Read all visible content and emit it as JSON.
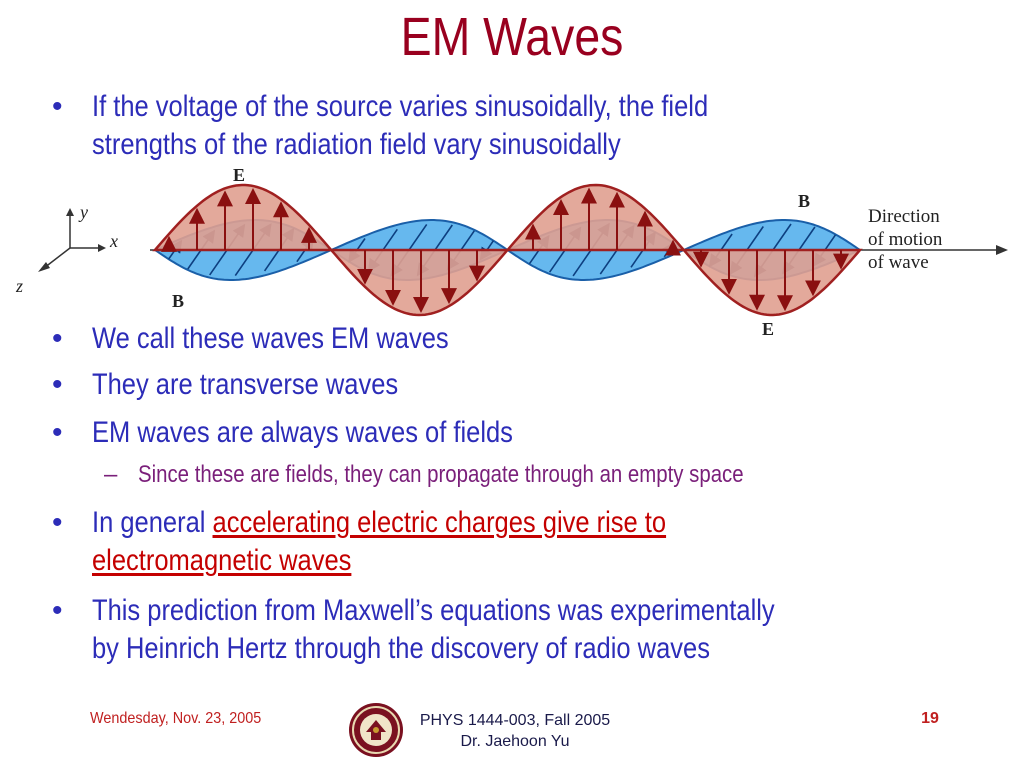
{
  "title": "EM Waves",
  "bullets": [
    {
      "marker": "•",
      "lines": [
        "If the voltage of the source varies sinusoidally, the field",
        "strengths of the radiation field vary sinusoidally"
      ]
    },
    {
      "marker": "•",
      "text": "We call these waves EM waves"
    },
    {
      "marker": "•",
      "text": "They are transverse waves"
    },
    {
      "marker": "•",
      "text": "EM waves are always waves of fields"
    },
    {
      "marker": "–",
      "text": "Since these are fields, they can propagate through an empty space"
    },
    {
      "marker": "•",
      "prefix": "In general ",
      "highlight_line1": "accelerating electric charges give rise to",
      "highlight_line2": "electromagnetic waves"
    },
    {
      "marker": "•",
      "lines": [
        "This prediction from Maxwell’s equations was experimentally",
        "by Heinrich Hertz through the discovery of radio waves"
      ]
    }
  ],
  "diagram": {
    "e_label_top": "E",
    "e_label_bottom": "E",
    "b_label_top": "B",
    "b_label_bottom": "B",
    "axis_y": "y",
    "axis_x": "x",
    "axis_z": "z",
    "direction_line1": "Direction",
    "direction_line2": "of motion",
    "direction_line3": "of wave",
    "colors": {
      "e_fill": "#e0a090",
      "e_stroke": "#a02020",
      "b_fill": "#66b8ee",
      "b_stroke": "#1a5fa8"
    }
  },
  "footer": {
    "date": "Wendesday, Nov. 23, 2005",
    "course_line1": "PHYS 1444-003, Fall 2005",
    "course_line2": "Dr. Jaehoon Yu",
    "page": "19",
    "seal_icon": "university-seal-icon"
  },
  "colors": {
    "title": "#99001f",
    "bullet_text": "#2c2cb8",
    "sub_bullet_text": "#7a1f7a",
    "highlight": "#c40000"
  }
}
